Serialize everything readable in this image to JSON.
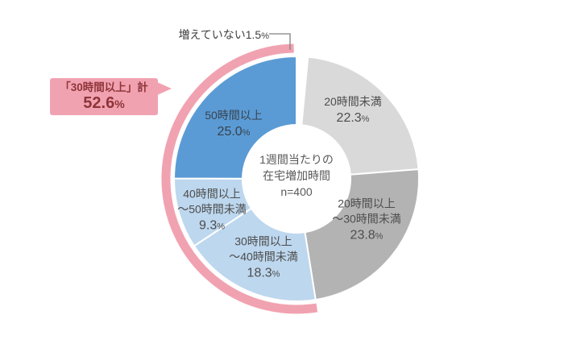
{
  "chart_data": {
    "type": "pie",
    "style": "donut",
    "title": "1週間当たりの在宅増加時間",
    "sample_size_label": "n=400",
    "center_title_lines": [
      "1週間当たりの",
      "在宅増加時間",
      "n=400"
    ],
    "percent_sign": "%",
    "rotation": "starts at 12 o'clock, clockwise",
    "segments": [
      {
        "label": "増えていない",
        "pct": 1.5,
        "pct_text": "1.5",
        "color": "#ffffff",
        "name_lines": [
          "増えていない"
        ]
      },
      {
        "label": "20時間未満",
        "pct": 22.3,
        "pct_text": "22.3",
        "color": "#d9d9d9",
        "name_lines": [
          "20時間未満"
        ]
      },
      {
        "label": "20時間以上～30時間未満",
        "pct": 23.8,
        "pct_text": "23.8",
        "color": "#b3b3b3",
        "name_lines": [
          "20時間以上",
          "～30時間未満"
        ]
      },
      {
        "label": "30時間以上～40時間未満",
        "pct": 18.3,
        "pct_text": "18.3",
        "color": "#bdd7ee",
        "name_lines": [
          "30時間以上",
          "～40時間未満"
        ]
      },
      {
        "label": "40時間以上～50時間未満",
        "pct": 9.3,
        "pct_text": "9.3",
        "color": "#bdd7ee",
        "name_lines": [
          "40時間以上",
          "～50時間未満"
        ]
      },
      {
        "label": "50時間以上",
        "pct": 25.0,
        "pct_text": "25.0",
        "color": "#5b9bd5",
        "name_lines": [
          "50時間以上"
        ]
      }
    ],
    "annotation": {
      "text": "増えていない",
      "pct_text": "1.5",
      "target_segment": "増えていない"
    },
    "highlight": {
      "label": "「30時間以上」計",
      "pct": 52.6,
      "pct_text": "52.6",
      "arc_color": "#f1a2b1",
      "box_bg": "#f1a2b1",
      "text_color": "#8e3538",
      "covers_segments": [
        3,
        4,
        5
      ]
    }
  }
}
